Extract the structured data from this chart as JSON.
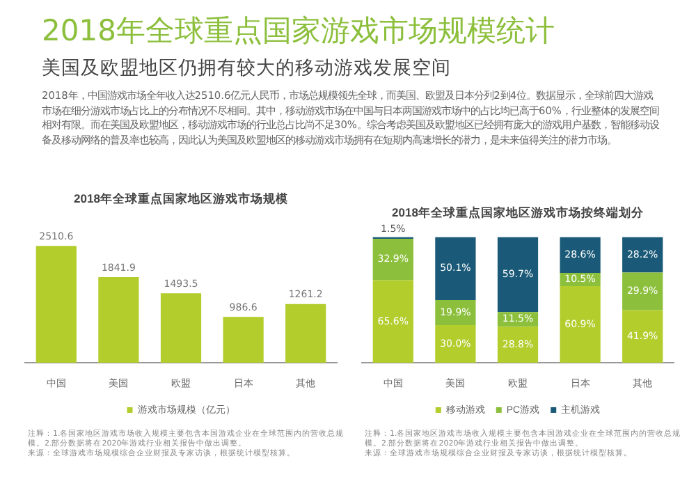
{
  "chart_data": [
    {
      "type": "other",
      "title": "2018年全球重点国家游戏市场规模统计",
      "subtitle": "美国及欧盟地区仍拥有较大的移动游戏发展空间",
      "annotations": [
        "2018年，中国游戏市场全年收入达2510.6亿元人民币，市场总规模领先全球，而美国、欧盟及日本分列2到4位。数据显示，全球前四大游戏市场在细分游戏市场占比上的分布情况不尽相同。其中，移动游戏市场在中国与日本两国游戏市场中的占比均已高于60%，行业整体的发展空间相对有限。而在美国及欧盟地区，移动游戏市场的行业总占比尚不足30%。综合考虑美国及欧盟地区已经拥有庞大的游戏用户基数，智能移动设备及移动网络的普及率也较高，因此认为美国及欧盟地区的移动游戏市场拥有在短期内高速增长的潜力，是未来值得关注的潜力市场。"
      ]
    },
    {
      "type": "bar",
      "title": "2018年全球重点国家地区游戏市场规模",
      "categories": [
        "中国",
        "美国",
        "欧盟",
        "日本",
        "其他"
      ],
      "series": [
        {
          "name": "游戏市场规模（亿元）",
          "color": "#b2cd2c",
          "values": [
            2510.6,
            1841.9,
            1493.5,
            986.6,
            1261.2
          ]
        }
      ],
      "data_labels": true,
      "legend": "bottom",
      "tick_labels": "x",
      "annotations": [
        "注释：1.各国家地区游戏市场收入规模主要包含本国游戏企业在全球范围内的营收总规模。2.部分数据将在2020年游戏行业相关报告中做出调整。",
        "来源：全球游戏市场规模综合企业财报及专家访谈，根据统计模型核算。"
      ]
    },
    {
      "type": "bar",
      "title": "2018年全球重点国家地区游戏市场按终端划分",
      "categories": [
        "中国",
        "美国",
        "欧盟",
        "日本",
        "其他"
      ],
      "stacked": true,
      "series": [
        {
          "name": "移动游戏",
          "color": "#b2cd2c",
          "values": [
            65.6,
            30.0,
            28.8,
            60.9,
            41.9
          ],
          "value_labels": [
            "65.6%",
            "30.0%",
            "28.8%",
            "60.9%",
            "41.9%"
          ]
        },
        {
          "name": "PC游戏",
          "color": "#8cbf3c",
          "values": [
            32.9,
            19.9,
            11.5,
            10.5,
            29.9
          ],
          "value_labels": [
            "32.9%",
            "19.9%",
            "11.5%",
            "10.5%",
            "29.9%"
          ]
        },
        {
          "name": "主机游戏",
          "color": "#1a5a78",
          "values": [
            1.5,
            50.1,
            59.7,
            28.6,
            28.2
          ],
          "value_labels": [
            "1.5%",
            "50.1%",
            "59.7%",
            "28.6%",
            "28.2%"
          ]
        }
      ],
      "ylim": [
        0,
        100
      ],
      "legend": "bottom",
      "tick_labels": "x",
      "annotations": [
        "注释：1.各国家地区游戏市场收入规模主要包含本国游戏企业在全球范围内的营收总规模。2.部分数据将在2020年游戏行业相关报告中做出调整。",
        "来源：全球游戏市场规模综合企业财报及专家访谈，根据统计模型核算。"
      ]
    }
  ]
}
